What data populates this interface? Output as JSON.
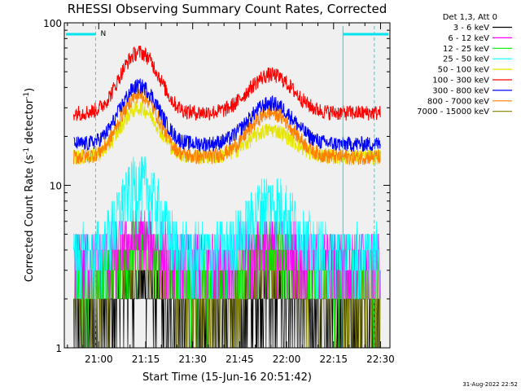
{
  "chart_data": {
    "type": "line",
    "title": "RHESSI Observing Summary Count Rates, Corrected",
    "xlabel": "Start Time (15-Jun-16 20:51:42)",
    "ylabel_main": "Corrected Count Rate (s",
    "ylabel_sup1": "-1",
    "ylabel_mid": " detector",
    "ylabel_sup2": "-1",
    "ylabel_end": ")",
    "yscale": "log",
    "ylim": [
      1,
      100
    ],
    "y_tick_labels": [
      "100",
      "10",
      "1"
    ],
    "x_tick_labels": [
      "21:00",
      "21:15",
      "21:30",
      "21:45",
      "22:00",
      "22:15",
      "22:30"
    ],
    "xlim_minutes_after_2050": [
      -1,
      103
    ],
    "x_tick_minutes_after_2050": [
      10,
      25,
      40,
      55,
      70,
      85,
      100
    ],
    "legend_title": "Det 1,3, Att 0",
    "night_marker_label": "N",
    "footer_timestamp": "31-Aug-2022 22:52",
    "series": [
      {
        "name": "3 - 6 keV",
        "color": "#000000",
        "peak1": 2.6,
        "peak2": 2.2,
        "base": 1.6
      },
      {
        "name": "6 - 12 keV",
        "color": "#ff00ff",
        "peak1": 5.0,
        "peak2": 4.6,
        "base": 3.8
      },
      {
        "name": "12 - 25 keV",
        "color": "#00ee00",
        "peak1": 4.8,
        "peak2": 4.3,
        "base": 2.8
      },
      {
        "name": "25 - 50 keV",
        "color": "#00ffff",
        "peak1": 11.0,
        "peak2": 8.5,
        "base": 4.0
      },
      {
        "name": "50 - 100 keV",
        "color": "#e5e500",
        "peak1": 30.0,
        "peak2": 22.0,
        "base": 15.0
      },
      {
        "name": "100 - 300 keV",
        "color": "#ff0000",
        "peak1": 66.0,
        "peak2": 48.0,
        "base": 28.0
      },
      {
        "name": "300 - 800 keV",
        "color": "#0000ff",
        "peak1": 41.0,
        "peak2": 32.0,
        "base": 18.0
      },
      {
        "name": "800 - 7000 keV",
        "color": "#ff8000",
        "peak1": 36.0,
        "peak2": 28.0,
        "base": 15.0
      },
      {
        "name": "7000 - 15000 keV",
        "color": "#808000",
        "peak1": 4.2,
        "peak2": 3.6,
        "base": 2.2
      }
    ],
    "shading_note_colors": {
      "axes_bg": "#f0f0f0",
      "night_bar": "#00e5ee"
    }
  }
}
